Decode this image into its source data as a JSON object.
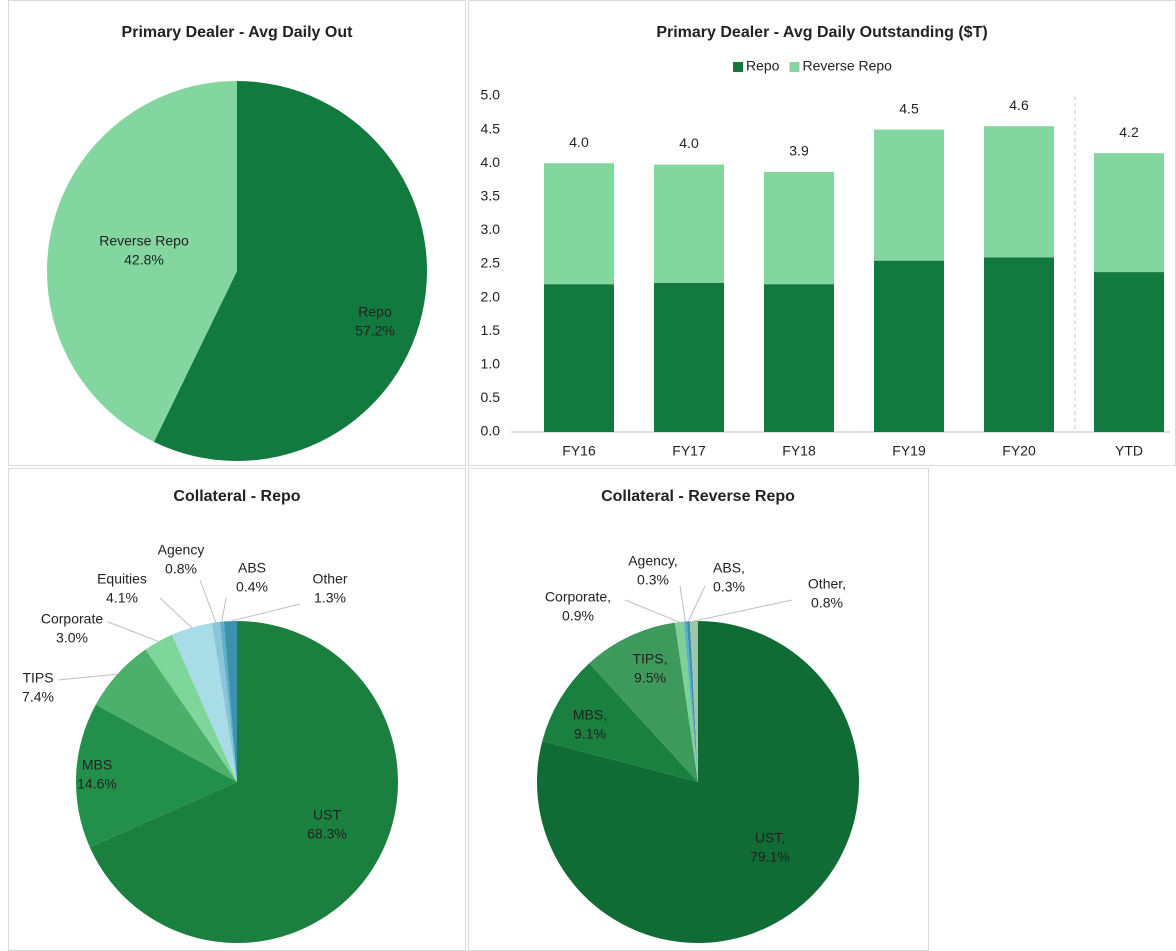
{
  "chart_data": [
    {
      "type": "pie",
      "title": "Primary Dealer - Avg Daily Out",
      "categories": [
        "Repo",
        "Reverse Repo"
      ],
      "values": [
        57.2,
        42.8
      ],
      "value_labels": [
        "57.2%",
        "42.8%"
      ],
      "colors": [
        "#127a3e",
        "#84d6a0"
      ]
    },
    {
      "type": "stacked_bar",
      "title": "Primary Dealer - Avg Daily Outstanding ($T)",
      "categories": [
        "FY16",
        "FY17",
        "FY18",
        "FY19",
        "FY20",
        "YTD"
      ],
      "series": [
        {
          "name": "Repo",
          "color": "#127a3e",
          "values": [
            2.2,
            2.22,
            2.2,
            2.55,
            2.6,
            2.38
          ]
        },
        {
          "name": "Reverse Repo",
          "color": "#84d6a0",
          "values": [
            1.8,
            1.76,
            1.67,
            1.95,
            1.95,
            1.77
          ]
        }
      ],
      "totals": [
        4.0,
        3.98,
        3.87,
        4.5,
        4.55,
        4.15
      ],
      "total_labels": [
        "4.0",
        "4.0",
        "3.9",
        "4.5",
        "4.6",
        "4.2"
      ],
      "ylim": [
        0,
        5
      ],
      "yticks": [
        {
          "value": 0,
          "label": "0.0"
        },
        {
          "value": 0.5,
          "label": "0.5"
        },
        {
          "value": 1,
          "label": "1.0"
        },
        {
          "value": 1.5,
          "label": "1.5"
        },
        {
          "value": 2,
          "label": "2.0"
        },
        {
          "value": 2.5,
          "label": "2.5"
        },
        {
          "value": 3,
          "label": "3.0"
        },
        {
          "value": 3.5,
          "label": "3.5"
        },
        {
          "value": 4,
          "label": "4.0"
        },
        {
          "value": 4.5,
          "label": "4.5"
        },
        {
          "value": 5,
          "label": "5.0"
        }
      ],
      "legend": "top",
      "grid": false
    },
    {
      "type": "pie",
      "title": "Collateral - Repo",
      "categories": [
        "UST",
        "MBS",
        "TIPS",
        "Corporate",
        "Equities",
        "Agency",
        "ABS",
        "Other"
      ],
      "values": [
        68.3,
        14.6,
        7.4,
        3.0,
        4.1,
        0.8,
        0.4,
        1.3
      ],
      "value_labels": [
        "68.3%",
        "14.6%",
        "7.4%",
        "3.0%",
        "4.1%",
        "0.8%",
        "0.4%",
        "1.3%"
      ],
      "colors": [
        "#1b7f3f",
        "#22904a",
        "#4cb06b",
        "#7fd69a",
        "#a8dce6",
        "#8ac6d8",
        "#5fb0c8",
        "#3a92ad"
      ]
    },
    {
      "type": "pie",
      "title": "Collateral - Reverse Repo",
      "categories": [
        "UST,",
        "MBS,",
        "TIPS,",
        "Corporate,",
        "Agency,",
        "ABS,",
        "Other,"
      ],
      "values": [
        79.1,
        9.1,
        9.5,
        0.9,
        0.3,
        0.3,
        0.8
      ],
      "value_labels": [
        "79.1%",
        "9.1%",
        "9.5%",
        "0.9%",
        "0.3%",
        "0.3%",
        "0.8%"
      ],
      "colors": [
        "#106b35",
        "#1a8040",
        "#3d9a5c",
        "#7fcf98",
        "#5aaec8",
        "#3a8fb0",
        "#9ec7a8"
      ]
    }
  ]
}
